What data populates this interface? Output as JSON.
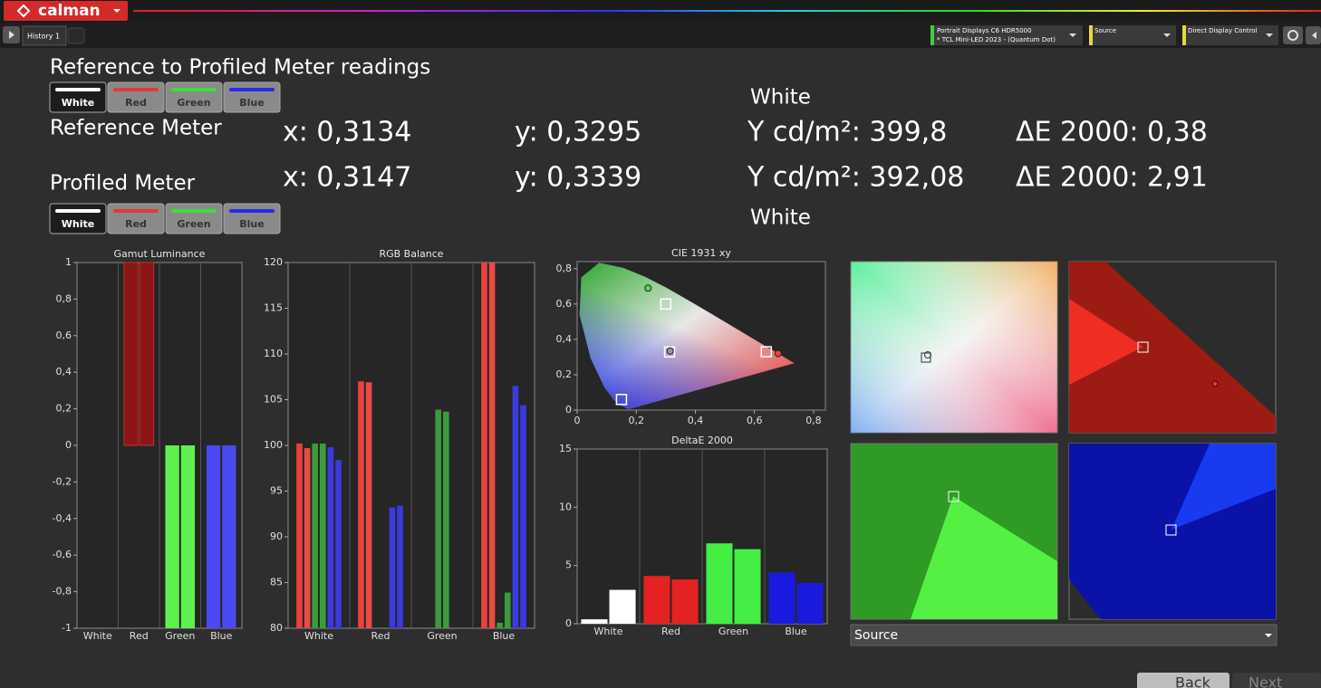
{
  "header": {
    "logo": "calman",
    "tab": "History 1",
    "meter": [
      "Portrait Displays C6 HDR5000",
      "* TCL Mini-LED 2023 - (Quantum Dot)"
    ],
    "source": "Source",
    "display": "Direct Display Control"
  },
  "panel": {
    "title": "Reference to Profiled Meter readings",
    "color_buttons": [
      "White",
      "Red",
      "Green",
      "Blue"
    ],
    "reference": {
      "label": "Reference Meter",
      "x": "x: 0,3134",
      "y": "y: 0,3295",
      "Y": "Y cd/m²: 399,8",
      "dE": "ΔE 2000: 0,38",
      "selected": "White"
    },
    "profiled": {
      "label": "Profiled Meter",
      "x": "x: 0,3147",
      "y": "y: 0,3339",
      "Y": "Y cd/m²: 392,08",
      "dE": "ΔE 2000: 2,91",
      "selected": "White"
    }
  },
  "chart_data": [
    {
      "type": "bar",
      "title": "Gamut Luminance",
      "categories": [
        "White",
        "Red",
        "Green",
        "Blue"
      ],
      "colors": [
        "#ffffff",
        "#8b1414",
        "#5ff04f",
        "#4a4af0"
      ],
      "series": [
        {
          "values": [
            0,
            1,
            -1,
            -1
          ]
        },
        {
          "values": [
            0,
            1,
            -1,
            -1
          ]
        }
      ],
      "ylim": [
        -1,
        1
      ],
      "yticks": [
        1,
        {
          "value": 0.8,
          "label": "0,8"
        },
        {
          "value": 0.6,
          "label": "0,6"
        },
        {
          "value": 0.4,
          "label": "0,4"
        },
        {
          "value": 0.2,
          "label": "0,2"
        },
        0,
        {
          "value": -0.2,
          "label": "-0,2"
        },
        {
          "value": -0.4,
          "label": "-0,4"
        },
        {
          "value": -0.6,
          "label": "-0,6"
        },
        {
          "value": -0.8,
          "label": "-0,8"
        },
        -1
      ]
    },
    {
      "type": "bar",
      "title": "RGB Balance",
      "categories": [
        "White",
        "Red",
        "Green",
        "Blue"
      ],
      "series": [
        {
          "color": "#e8423c",
          "values": [
            100.2,
            107.0,
            null,
            120
          ]
        },
        {
          "color": "#ec4a44",
          "values": [
            99.7,
            106.9,
            null,
            120
          ]
        },
        {
          "color": "#3a9a3a",
          "values": [
            100.2,
            null,
            103.9,
            80.6
          ]
        },
        {
          "color": "#3c9c3c",
          "values": [
            100.2,
            null,
            103.7,
            83.9
          ]
        },
        {
          "color": "#3b3bdd",
          "values": [
            99.8,
            93.2,
            null,
            106.5
          ]
        },
        {
          "color": "#3a3ae0",
          "values": [
            98.4,
            93.4,
            null,
            104.4
          ]
        }
      ],
      "ylim": [
        80,
        120
      ],
      "yticks": [
        80,
        85,
        90,
        95,
        100,
        105,
        110,
        115,
        120
      ]
    },
    {
      "type": "scatter",
      "title": "CIE 1931 xy",
      "series": [
        {
          "marker": "square",
          "color": "#ffffff",
          "x": [
            0.64,
            0.3,
            0.15,
            0.3127
          ],
          "values": [
            0.33,
            0.6,
            0.06,
            0.329
          ]
        },
        {
          "marker": "circle",
          "colors": [
            "#ff3b3b",
            "#4cdd4c",
            "#9a9a9a"
          ],
          "x": [
            0.68,
            0.24,
            0.3147
          ],
          "values": [
            0.32,
            0.69,
            0.3339
          ]
        }
      ],
      "xlim": [
        0,
        0.84
      ],
      "ylim": [
        0,
        0.84
      ],
      "xticks": [
        0,
        {
          "value": 0.2,
          "label": "0,2"
        },
        {
          "value": 0.4,
          "label": "0,4"
        },
        {
          "value": 0.6,
          "label": "0,6"
        },
        {
          "value": 0.8,
          "label": "0,8"
        }
      ],
      "yticks": [
        0,
        {
          "value": 0.2,
          "label": "0,2"
        },
        {
          "value": 0.4,
          "label": "0,4"
        },
        {
          "value": 0.6,
          "label": "0,6"
        },
        {
          "value": 0.8,
          "label": "0,8"
        }
      ]
    },
    {
      "type": "bar",
      "title": "DeltaE 2000",
      "categories": [
        "White",
        "Red",
        "Green",
        "Blue"
      ],
      "colors": [
        "#ffffff",
        "#e52222",
        "#44ee44",
        "#1a1add"
      ],
      "series": [
        {
          "values": [
            0.38,
            4.1,
            6.9,
            4.4
          ]
        },
        {
          "values": [
            2.91,
            3.8,
            6.4,
            3.5
          ]
        }
      ],
      "ylim": [
        0,
        15
      ],
      "yticks": [
        0,
        5,
        10,
        15
      ]
    }
  ],
  "source_dropdown": "Source",
  "nav": [
    "Back",
    "Next"
  ]
}
